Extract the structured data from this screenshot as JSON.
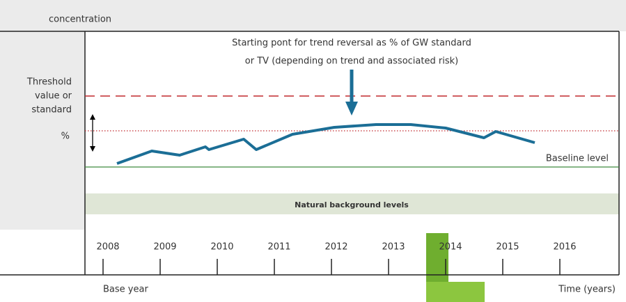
{
  "header": {
    "y_label": "concentration"
  },
  "left_labels": {
    "threshold": [
      "Threshold",
      "value or",
      "standard"
    ],
    "percent": "%"
  },
  "annotation": [
    "Starting pont for trend reversal as % of GW standard",
    "or TV (depending on trend and associated risk)"
  ],
  "baseline_label": "Baseline level",
  "background_label": "Natural background levels",
  "years": [
    "2008",
    "2009",
    "2010",
    "2011",
    "2012",
    "2013",
    "2014",
    "2015",
    "2016"
  ],
  "footer": {
    "base_year": "Base year",
    "x_label": "Time (years)"
  }
}
